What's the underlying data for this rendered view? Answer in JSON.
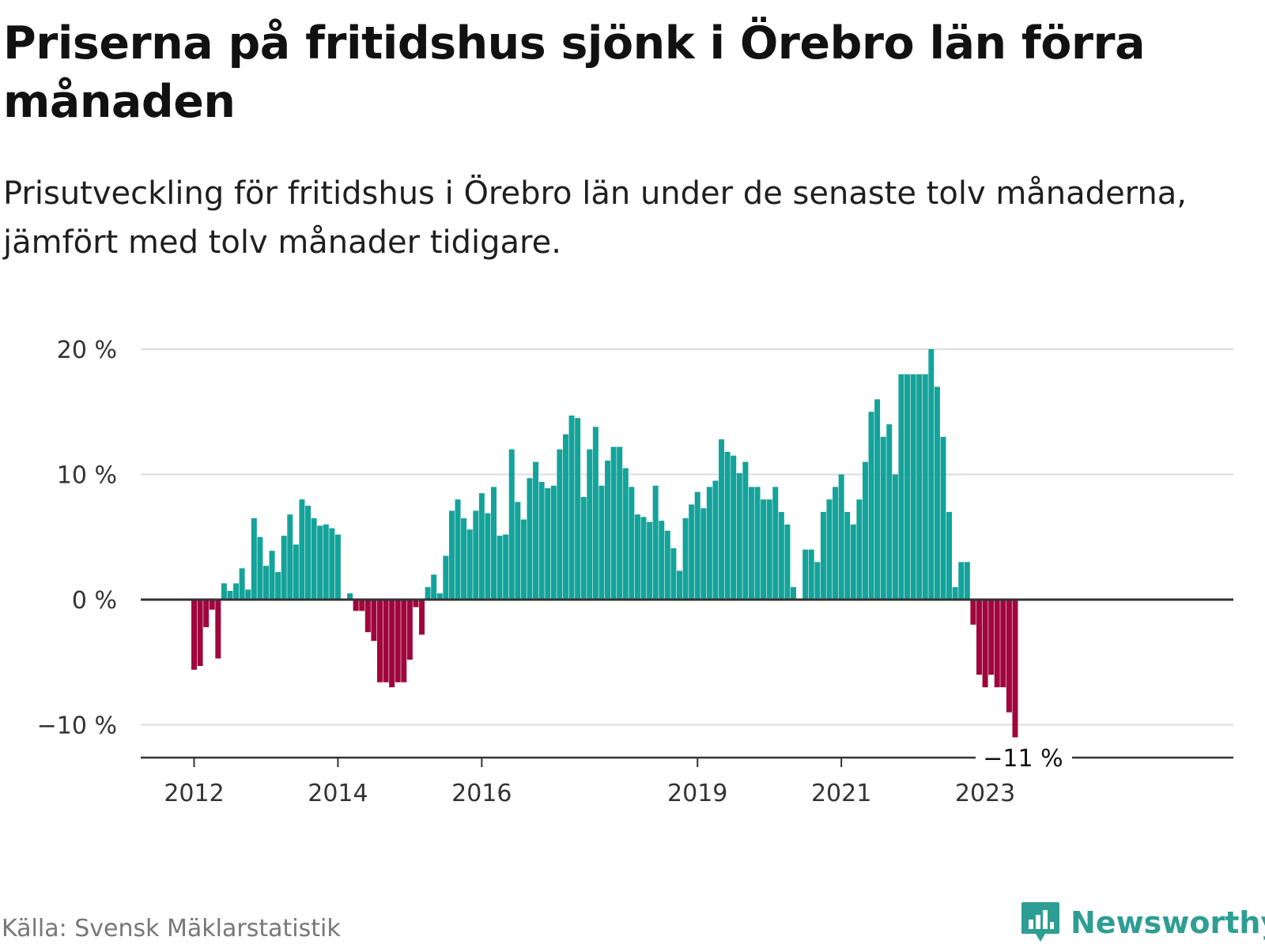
{
  "title": "Priserna på fritidshus sjönk i Örebro län förra månaden",
  "subtitle": "Prisutveckling för fritidshus i Örebro län under de senaste tolv månaderna, jämfört med tolv månader tidigare.",
  "source": "Källa: Svensk Mäklarstatistik",
  "logo": {
    "name": "Newsworthy",
    "icon": "bar-chart-speech-bubble-icon"
  },
  "colors": {
    "positive": "#14a39a",
    "negative": "#a0063c",
    "grid": "#dddddd",
    "axis": "#333333",
    "brand": "#2e9e94"
  },
  "chart_data": {
    "type": "bar",
    "ylim": [
      -11,
      20
    ],
    "yticks": [
      -10,
      0,
      10,
      20
    ],
    "ytick_labels": [
      "−10 %",
      "0 %",
      "10 %",
      "20 %"
    ],
    "xticks": [
      {
        "index": 0,
        "label": "2012"
      },
      {
        "index": 24,
        "label": "2014"
      },
      {
        "index": 48,
        "label": "2016"
      },
      {
        "index": 84,
        "label": "2019"
      },
      {
        "index": 108,
        "label": "2021"
      },
      {
        "index": 132,
        "label": "2023"
      }
    ],
    "grid": true,
    "end_label": "−11 %",
    "values": [
      -5.6,
      -5.3,
      -2.2,
      -0.8,
      -4.7,
      1.3,
      0.7,
      1.3,
      2.5,
      0.8,
      6.5,
      5.0,
      2.7,
      3.9,
      2.2,
      5.1,
      6.8,
      4.4,
      8.0,
      7.5,
      6.5,
      5.9,
      6.0,
      5.7,
      5.2,
      0.0,
      0.5,
      -0.9,
      -0.9,
      -2.6,
      -3.3,
      -6.6,
      -6.6,
      -7.0,
      -6.6,
      -6.6,
      -4.8,
      -0.6,
      -2.8,
      1.0,
      2.0,
      0.5,
      3.5,
      7.1,
      8.0,
      6.5,
      5.6,
      7.1,
      8.5,
      6.9,
      9.0,
      5.1,
      5.2,
      12.0,
      7.8,
      6.4,
      9.7,
      11.0,
      9.4,
      8.9,
      9.1,
      12.0,
      13.2,
      14.7,
      14.5,
      8.2,
      12.0,
      13.8,
      9.1,
      11.1,
      12.2,
      12.2,
      10.5,
      9.0,
      6.8,
      6.6,
      6.2,
      9.1,
      6.3,
      5.5,
      4.1,
      2.3,
      6.5,
      7.6,
      8.6,
      7.3,
      9.0,
      9.5,
      12.8,
      11.8,
      11.5,
      10.1,
      11.0,
      9.0,
      9.0,
      8.0,
      8.0,
      9.0,
      7.0,
      6.0,
      1.0,
      0.0,
      4.0,
      4.0,
      3.0,
      7.0,
      8.0,
      9.0,
      10.0,
      7.0,
      6.0,
      8.0,
      11.0,
      15.0,
      16.0,
      13.0,
      14.0,
      10.0,
      18.0,
      18.0,
      18.0,
      18.0,
      18.0,
      20.0,
      17.0,
      13.0,
      7.0,
      1.0,
      3.0,
      3.0,
      -2.0,
      -6.0,
      -7.0,
      -6.0,
      -7.0,
      -7.0,
      -9.0,
      -11.0
    ]
  }
}
